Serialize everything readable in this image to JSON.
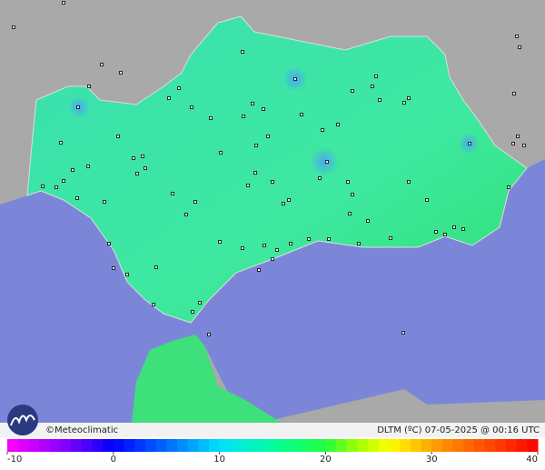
{
  "footer": {
    "brand": "©Meteoclimatic",
    "caption": "DLTM (ºC)  07-05-2025 @ 00:16 UTC"
  },
  "scale": {
    "ticks": [
      -10,
      0,
      10,
      20,
      30,
      40
    ]
  }
}
